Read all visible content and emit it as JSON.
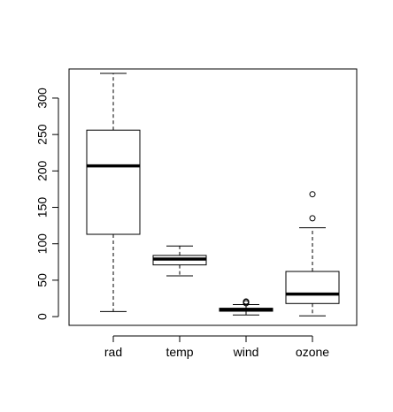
{
  "chart_data": {
    "type": "box",
    "title": "",
    "xlabel": "",
    "ylabel": "",
    "ylim": [
      -12,
      340
    ],
    "y_ticks": [
      0,
      50,
      100,
      150,
      200,
      250,
      300
    ],
    "grid": false,
    "legend": "none",
    "categories": [
      "rad",
      "temp",
      "wind",
      "ozone"
    ],
    "boxes": [
      {
        "category": "rad",
        "whisker_low": 7,
        "q1": 113,
        "median": 207,
        "q3": 256,
        "whisker_high": 334,
        "outliers": []
      },
      {
        "category": "temp",
        "whisker_low": 56,
        "q1": 71,
        "median": 79,
        "q3": 84,
        "whisker_high": 97,
        "outliers": []
      },
      {
        "category": "wind",
        "whisker_low": 2.3,
        "q1": 7.4,
        "median": 9.7,
        "q3": 11.5,
        "whisker_high": 16.6,
        "outliers": [
          20.1,
          18.4,
          20.7
        ]
      },
      {
        "category": "ozone",
        "whisker_low": 1,
        "q1": 18,
        "median": 31,
        "q3": 62,
        "whisker_high": 122,
        "outliers": [
          135,
          168
        ]
      }
    ]
  },
  "colors": {
    "line": "#000000",
    "box_fill": "#ffffff",
    "background": "#ffffff"
  }
}
